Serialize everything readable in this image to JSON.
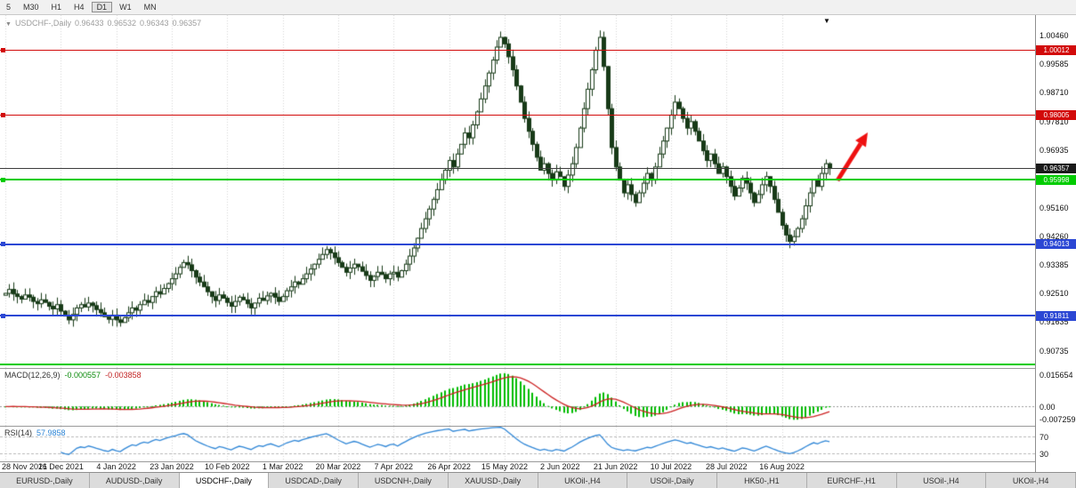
{
  "glyphs": {
    "title_arrow": "▼",
    "shift_marker": "▼"
  },
  "toolbar": {
    "timeframes": [
      {
        "label": "5",
        "active": false
      },
      {
        "label": "M30",
        "active": false
      },
      {
        "label": "H1",
        "active": false
      },
      {
        "label": "H4",
        "active": false
      },
      {
        "label": "D1",
        "active": true
      },
      {
        "label": "W1",
        "active": false
      },
      {
        "label": "MN",
        "active": false
      }
    ]
  },
  "chart_header": {
    "symbol_title": "USDCHF-,Daily",
    "open": "0.96433",
    "high": "0.96532",
    "low": "0.96343",
    "close": "0.96357"
  },
  "price_axis": {
    "ticks": [
      {
        "price": 1.0046,
        "label": "1.00460"
      },
      {
        "price": 0.99585,
        "label": "0.99585"
      },
      {
        "price": 0.9871,
        "label": "0.98710"
      },
      {
        "price": 0.9781,
        "label": "0.97810"
      },
      {
        "price": 0.96935,
        "label": "0.96935"
      },
      {
        "price": 0.9516,
        "label": "0.95160"
      },
      {
        "price": 0.9426,
        "label": "0.94260"
      },
      {
        "price": 0.93385,
        "label": "0.93385"
      },
      {
        "price": 0.9251,
        "label": "0.92510"
      },
      {
        "price": 0.91635,
        "label": "0.91635"
      },
      {
        "price": 0.90735,
        "label": "0.90735"
      }
    ]
  },
  "levels": [
    {
      "price": 1.00012,
      "label": "1.00012",
      "color": "#d20a0a",
      "thickness": 1,
      "handle": true,
      "badge": true,
      "name": "resistance-line-1-00012"
    },
    {
      "price": 0.98005,
      "label": "0.98005",
      "color": "#d20a0a",
      "thickness": 1,
      "handle": true,
      "badge": true,
      "name": "resistance-line-0-98005"
    },
    {
      "price": 0.96357,
      "label": "0.96357",
      "color": "#3c3c3c",
      "thickness": 1,
      "handle": false,
      "badge": true,
      "badge_color": "#1a1a1a",
      "name": "current-bid-line"
    },
    {
      "price": 0.95998,
      "label": "0.95998",
      "color": "#00cc00",
      "thickness": 2,
      "handle": true,
      "badge": true,
      "name": "support-line-0-95998"
    },
    {
      "price": 0.94013,
      "label": "0.94013",
      "color": "#2b47d4",
      "thickness": 2,
      "handle": true,
      "badge": true,
      "name": "support-line-0-94013"
    },
    {
      "price": 0.91811,
      "label": "0.91811",
      "color": "#2b47d4",
      "thickness": 2,
      "handle": true,
      "badge": true,
      "name": "support-line-0-91811"
    },
    {
      "price": 0.903,
      "label": "",
      "color": "#00cc00",
      "thickness": 2,
      "handle": false,
      "badge": false,
      "name": "support-line-lower-green"
    }
  ],
  "chart_data": {
    "type": "candlestick",
    "symbol": "USDCHF",
    "timeframe": "Daily",
    "y_range": [
      0.9025,
      1.0095
    ],
    "label_every": 14,
    "x_labels": [
      "28 Nov 2021",
      "16 Dec 2021",
      "4 Jan 2022",
      "23 Jan 2022",
      "10 Feb 2022",
      "1 Mar 2022",
      "20 Mar 2022",
      "7 Apr 2022",
      "26 Apr 2022",
      "15 May 2022",
      "2 Jun 2022",
      "21 Jun 2022",
      "10 Jul 2022",
      "28 Jul 2022",
      "16 Aug 2022"
    ],
    "closes": [
      0.925,
      0.9262,
      0.9248,
      0.924,
      0.9232,
      0.9245,
      0.9238,
      0.9225,
      0.9218,
      0.923,
      0.9222,
      0.921,
      0.9202,
      0.9215,
      0.9195,
      0.918,
      0.9168,
      0.9185,
      0.9205,
      0.9215,
      0.9208,
      0.922,
      0.9212,
      0.92,
      0.919,
      0.9178,
      0.917,
      0.9182,
      0.9168,
      0.916,
      0.9175,
      0.919,
      0.9205,
      0.9198,
      0.9215,
      0.9228,
      0.9222,
      0.924,
      0.9255,
      0.9248,
      0.9265,
      0.928,
      0.9295,
      0.931,
      0.933,
      0.9345,
      0.9338,
      0.932,
      0.93,
      0.9285,
      0.927,
      0.9255,
      0.924,
      0.9228,
      0.9245,
      0.9235,
      0.9222,
      0.921,
      0.9225,
      0.9238,
      0.923,
      0.9218,
      0.9205,
      0.922,
      0.9235,
      0.9228,
      0.9242,
      0.925,
      0.9238,
      0.9225,
      0.924,
      0.9258,
      0.927,
      0.9285,
      0.9278,
      0.9295,
      0.931,
      0.9325,
      0.934,
      0.9355,
      0.937,
      0.9385,
      0.9375,
      0.936,
      0.9345,
      0.933,
      0.9315,
      0.9328,
      0.934,
      0.9332,
      0.9318,
      0.9305,
      0.929,
      0.9302,
      0.9315,
      0.9308,
      0.9295,
      0.931,
      0.9315,
      0.93,
      0.932,
      0.934,
      0.9365,
      0.939,
      0.942,
      0.945,
      0.948,
      0.951,
      0.954,
      0.957,
      0.96,
      0.963,
      0.966,
      0.964,
      0.968,
      0.971,
      0.9745,
      0.973,
      0.977,
      0.981,
      0.985,
      0.989,
      0.993,
      0.997,
      1.001,
      1.004,
      1.002,
      0.998,
      0.994,
      0.989,
      0.984,
      0.979,
      0.975,
      0.971,
      0.967,
      0.963,
      0.965,
      0.962,
      0.96,
      0.9625,
      0.961,
      0.958,
      0.9615,
      0.965,
      0.97,
      0.976,
      0.982,
      0.988,
      0.994,
      1.0,
      1.004,
      0.995,
      0.982,
      0.97,
      0.964,
      0.96,
      0.956,
      0.9585,
      0.9555,
      0.953,
      0.956,
      0.959,
      0.962,
      0.96,
      0.964,
      0.968,
      0.972,
      0.976,
      0.98,
      0.984,
      0.982,
      0.979,
      0.976,
      0.978,
      0.975,
      0.972,
      0.969,
      0.966,
      0.968,
      0.965,
      0.962,
      0.964,
      0.961,
      0.958,
      0.955,
      0.9575,
      0.9605,
      0.959,
      0.956,
      0.953,
      0.9555,
      0.9585,
      0.961,
      0.958,
      0.954,
      0.95,
      0.946,
      0.943,
      0.941,
      0.9425,
      0.945,
      0.948,
      0.952,
      0.956,
      0.96,
      0.958,
      0.962,
      0.965,
      0.9636
    ],
    "last_bar": {
      "open": 0.96433,
      "high": 0.96532,
      "low": 0.96343,
      "close": 0.96357
    },
    "bull_color": "#ffffff",
    "bear_color": "#173a17",
    "outline_color": "#173a17"
  },
  "macd": {
    "label": "MACD(12,26,9)",
    "main_value": "-0.000557",
    "signal_value": "-0.003858",
    "axis_max": "0.015654",
    "axis_zero": "0.00",
    "axis_min": "-0.007259",
    "fast": 12,
    "slow": 26,
    "signal": 9,
    "histogram_color": "#00bb00",
    "signal_color": "#cc2222"
  },
  "rsi": {
    "label": "RSI(14)",
    "value": "57.9858",
    "period": 14,
    "line_color": "#2f86d6",
    "levels": [
      70,
      30
    ],
    "level_labels": [
      "70",
      "30"
    ]
  },
  "date_axis": {
    "labels": [
      "28 Nov 2021",
      "16 Dec 2021",
      "4 Jan 2022",
      "23 Jan 2022",
      "10 Feb 2022",
      "1 Mar 2022",
      "20 Mar 2022",
      "7 Apr 2022",
      "26 Apr 2022",
      "15 May 2022",
      "2 Jun 2022",
      "21 Jun 2022",
      "10 Jul 2022",
      "28 Jul 2022",
      "16 Aug 2022"
    ]
  },
  "tabs": {
    "items": [
      {
        "label": "EURUSD-,Daily",
        "active": false
      },
      {
        "label": "AUDUSD-,Daily",
        "active": false
      },
      {
        "label": "USDCHF-,Daily",
        "active": true
      },
      {
        "label": "USDCAD-,Daily",
        "active": false
      },
      {
        "label": "USDCNH-,Daily",
        "active": false
      },
      {
        "label": "XAUUSD-,Daily",
        "active": false
      },
      {
        "label": "UKOil-,H4",
        "active": false
      },
      {
        "label": "USOil-,Daily",
        "active": false
      },
      {
        "label": "HK50-,H1",
        "active": false
      },
      {
        "label": "EURCHF-,H1",
        "active": false
      },
      {
        "label": "USOil-,H4",
        "active": false
      },
      {
        "label": "UKOil-,H4",
        "active": false
      }
    ]
  },
  "annotations": [
    {
      "type": "arrow",
      "direction": "up-right",
      "color": "#ee1111",
      "from": [
        941,
        186
      ],
      "to": [
        975,
        132
      ]
    }
  ]
}
